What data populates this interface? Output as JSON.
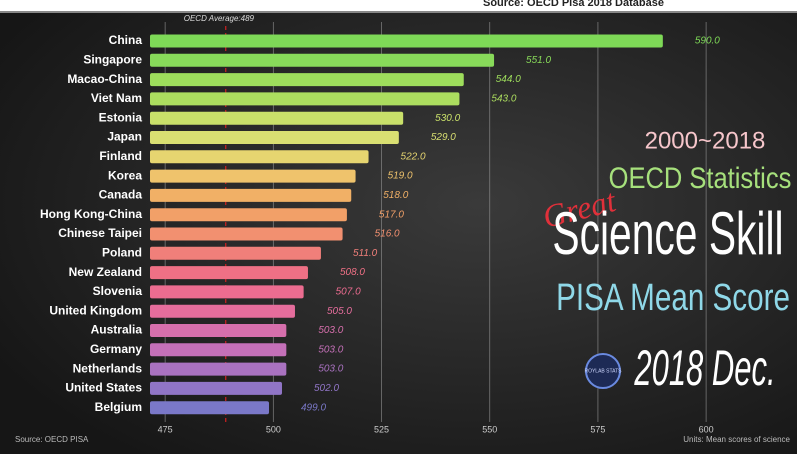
{
  "chart_data": {
    "type": "barh",
    "header_source": "Source: OECD Pisa 2018 Database",
    "average": 489,
    "average_label": "OECD Average:489",
    "categories": [
      "China",
      "Singapore",
      "Macao-China",
      "Viet Nam",
      "Estonia",
      "Japan",
      "Finland",
      "Korea",
      "Canada",
      "Hong Kong-China",
      "Chinese Taipei",
      "Poland",
      "New Zealand",
      "Slovenia",
      "United Kingdom",
      "Australia",
      "Germany",
      "Netherlands",
      "United States",
      "Belgium"
    ],
    "values": [
      590,
      551,
      544,
      543,
      530,
      529,
      522,
      519,
      518,
      517,
      516,
      511,
      508,
      507,
      505,
      503,
      503,
      503,
      502,
      499
    ],
    "value_labels": [
      "590.0",
      "551.0",
      "544.0",
      "543.0",
      "530.0",
      "529.0",
      "522.0",
      "519.0",
      "518.0",
      "517.0",
      "516.0",
      "511.0",
      "508.0",
      "507.0",
      "505.0",
      "503.0",
      "503.0",
      "503.0",
      "502.0",
      "499.0"
    ],
    "colors": [
      "#7ed957",
      "#88da5a",
      "#9edd5c",
      "#acdd5f",
      "#c9e06a",
      "#d9df72",
      "#e6d570",
      "#efc36c",
      "#f1b066",
      "#f2a068",
      "#f29070",
      "#f07f7a",
      "#ef7085",
      "#ec6c90",
      "#e56d9c",
      "#d66fac",
      "#c470b8",
      "#a972c0",
      "#9075c6",
      "#7a78c8"
    ],
    "xlim": [
      471.5,
      621
    ],
    "xticks": [
      475,
      500,
      525,
      550,
      575,
      600
    ],
    "grid": true,
    "source": "Source: OECD PISA",
    "units": "Units: Mean scores of science",
    "annotations": [
      "2000~2018",
      "OECD Statistics",
      "Great",
      "Science Skill",
      "PISA Mean Score",
      "2018 Dec.",
      "ROYLAB STATS"
    ]
  }
}
